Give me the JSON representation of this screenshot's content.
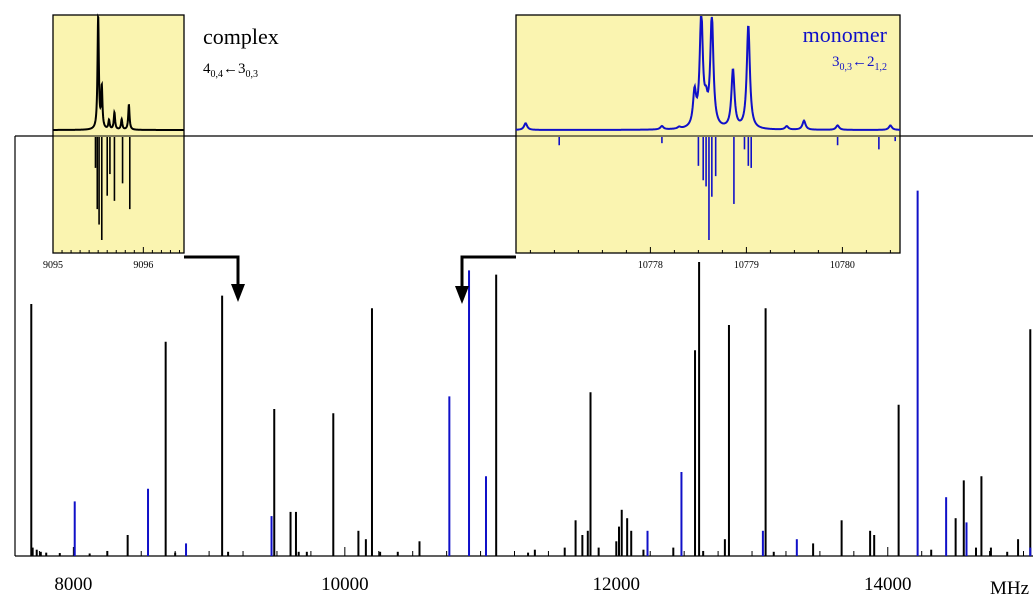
{
  "colors": {
    "black": "#000000",
    "blue": "#1010c8",
    "inset_bg": "#faf4b0"
  },
  "chart_data": [
    {
      "name": "main-spectrum",
      "type": "stick",
      "xlabel": "",
      "xunit": "MHz",
      "xlim": [
        7570,
        15070
      ],
      "ylim": [
        0,
        100
      ],
      "xticks": [
        8000,
        10000,
        12000,
        14000
      ],
      "xtick_labels": [
        "8000",
        "10000",
        "12000",
        "14000"
      ],
      "series": [
        {
          "color_key": "black",
          "points": [
            [
              7690,
              60
            ],
            [
              7700,
              2
            ],
            [
              7730,
              1.5
            ],
            [
              7760,
              1
            ],
            [
              7800,
              0.8
            ],
            [
              7900,
              0.7
            ],
            [
              8120,
              0.6
            ],
            [
              8250,
              1.2
            ],
            [
              8400,
              5
            ],
            [
              8680,
              51
            ],
            [
              8750,
              0.8
            ],
            [
              9096,
              62
            ],
            [
              9140,
              1
            ],
            [
              9480,
              35
            ],
            [
              9600,
              10.5
            ],
            [
              9640,
              10.5
            ],
            [
              9660,
              1
            ],
            [
              9720,
              1
            ],
            [
              9915,
              34
            ],
            [
              10100,
              6
            ],
            [
              10155,
              4
            ],
            [
              10200,
              59
            ],
            [
              10260,
              1
            ],
            [
              10390,
              1
            ],
            [
              10550,
              3.5
            ],
            [
              11115,
              67
            ],
            [
              11350,
              0.8
            ],
            [
              11400,
              1.5
            ],
            [
              11620,
              2
            ],
            [
              11700,
              8.5
            ],
            [
              11750,
              5
            ],
            [
              11790,
              6
            ],
            [
              11810,
              39
            ],
            [
              11870,
              2
            ],
            [
              12000,
              3.5
            ],
            [
              12020,
              7
            ],
            [
              12040,
              11
            ],
            [
              12080,
              9
            ],
            [
              12110,
              6
            ],
            [
              12200,
              1.5
            ],
            [
              12420,
              2
            ],
            [
              12580,
              49
            ],
            [
              12610,
              70
            ],
            [
              12640,
              1.2
            ],
            [
              12800,
              4
            ],
            [
              12830,
              55
            ],
            [
              13100,
              59
            ],
            [
              13160,
              1
            ],
            [
              13450,
              3
            ],
            [
              13660,
              8.5
            ],
            [
              13870,
              6
            ],
            [
              13900,
              5
            ],
            [
              14080,
              36
            ],
            [
              14320,
              1.5
            ],
            [
              14500,
              9
            ],
            [
              14560,
              18
            ],
            [
              14650,
              2
            ],
            [
              14690,
              19
            ],
            [
              14760,
              2
            ],
            [
              14880,
              1
            ],
            [
              14960,
              4
            ],
            [
              15050,
              54
            ]
          ]
        },
        {
          "color_key": "blue",
          "points": [
            [
              8010,
              13
            ],
            [
              8550,
              16
            ],
            [
              8830,
              3
            ],
            [
              9460,
              9.5
            ],
            [
              10770,
              38
            ],
            [
              10915,
              68
            ],
            [
              11040,
              19
            ],
            [
              12230,
              6
            ],
            [
              12480,
              20
            ],
            [
              13080,
              6
            ],
            [
              13330,
              4
            ],
            [
              14220,
              87
            ],
            [
              14430,
              14
            ],
            [
              14580,
              8
            ],
            [
              15050,
              2
            ]
          ]
        }
      ]
    },
    {
      "name": "complex-inset",
      "type": "line",
      "title": "complex",
      "transition": {
        "j": "4",
        "ka": "0",
        "kc": "4",
        "arrow": "←",
        "j2": "3",
        "ka2": "0",
        "kc2": "3"
      },
      "xlim": [
        9095,
        9096.45
      ],
      "xticks": [
        9095,
        9096
      ],
      "xtick_labels": [
        "9095",
        "9096"
      ],
      "color_key": "black",
      "observed_peaks": [
        [
          9095.5,
          100
        ],
        [
          9095.54,
          36
        ],
        [
          9095.62,
          8
        ],
        [
          9095.68,
          15
        ],
        [
          9095.76,
          9
        ],
        [
          9095.84,
          22
        ]
      ],
      "calculated_sticks": [
        [
          9095.47,
          30
        ],
        [
          9095.49,
          70
        ],
        [
          9095.51,
          85
        ],
        [
          9095.54,
          100
        ],
        [
          9095.6,
          57
        ],
        [
          9095.63,
          36
        ],
        [
          9095.68,
          62
        ],
        [
          9095.77,
          45
        ],
        [
          9095.85,
          70
        ]
      ]
    },
    {
      "name": "monomer-inset",
      "type": "line",
      "title": "monomer",
      "transition": {
        "j": "3",
        "ka": "0",
        "kc": "3",
        "arrow": "←",
        "j2": "2",
        "ka2": "1",
        "kc2": "2"
      },
      "xlim": [
        10776.6,
        10780.6
      ],
      "xticks": [
        10778,
        10779,
        10780
      ],
      "xtick_labels": [
        "10778",
        "10779",
        "10780"
      ],
      "color_key": "blue",
      "observed_peaks": [
        [
          10776.7,
          6
        ],
        [
          10778.12,
          3
        ],
        [
          10778.3,
          1.5
        ],
        [
          10778.46,
          30
        ],
        [
          10778.53,
          100
        ],
        [
          10778.58,
          16
        ],
        [
          10778.64,
          98
        ],
        [
          10778.86,
          52
        ],
        [
          10779.02,
          92
        ],
        [
          10779.42,
          3
        ],
        [
          10779.6,
          8
        ],
        [
          10779.95,
          4
        ],
        [
          10780.5,
          4
        ]
      ],
      "calculated_sticks": [
        [
          10777.05,
          8
        ],
        [
          10778.12,
          6
        ],
        [
          10778.5,
          28
        ],
        [
          10778.55,
          42
        ],
        [
          10778.58,
          48
        ],
        [
          10778.61,
          100
        ],
        [
          10778.64,
          58
        ],
        [
          10778.68,
          38
        ],
        [
          10778.87,
          65
        ],
        [
          10778.98,
          12
        ],
        [
          10779.02,
          28
        ],
        [
          10779.05,
          30
        ],
        [
          10779.95,
          8
        ],
        [
          10780.38,
          12
        ],
        [
          10780.55,
          4
        ]
      ]
    }
  ]
}
